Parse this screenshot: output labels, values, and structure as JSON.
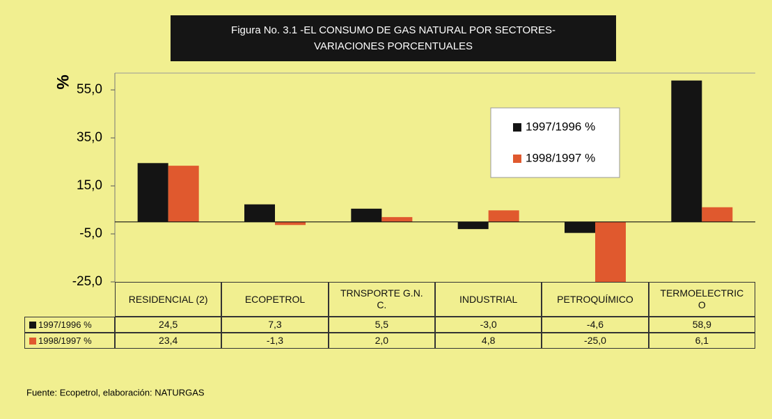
{
  "chart_data": {
    "type": "bar",
    "title": [
      "Figura No. 3.1 -EL CONSUMO DE GAS NATURAL POR SECTORES-",
      "VARIACIONES PORCENTUALES"
    ],
    "y_label": "%",
    "categories": [
      "RESIDENCIAL (2)",
      "ECOPETROL",
      "TRNSPORTE G.N.C.",
      "INDUSTRIAL",
      "PETROQUÍMICO",
      "TERMOELECTRICO"
    ],
    "series": [
      {
        "name": "1997/1996 %",
        "color": "#141414",
        "values": [
          24.5,
          7.3,
          5.5,
          -3.0,
          -4.6,
          58.9
        ],
        "value_labels": [
          "24,5",
          "7,3",
          "5,5",
          "-3,0",
          "-4,6",
          "58,9"
        ]
      },
      {
        "name": "1998/1997 %",
        "color": "#e0592e",
        "values": [
          23.4,
          -1.3,
          2.0,
          4.8,
          -25.0,
          6.1
        ],
        "value_labels": [
          "23,4",
          "-1,3",
          "2,0",
          "4,8",
          "-25,0",
          "6,1"
        ]
      }
    ],
    "ylim": [
      -25,
      62
    ],
    "yticks": [
      {
        "value": 55,
        "label": "55,0"
      },
      {
        "value": 35,
        "label": "35,0"
      },
      {
        "value": 15,
        "label": "15,0"
      },
      {
        "value": -5,
        "label": "-5,0"
      },
      {
        "value": -25,
        "label": "-25,0"
      }
    ],
    "source": "Fuente: Ecopetrol, elaboración: NATURGAS"
  }
}
